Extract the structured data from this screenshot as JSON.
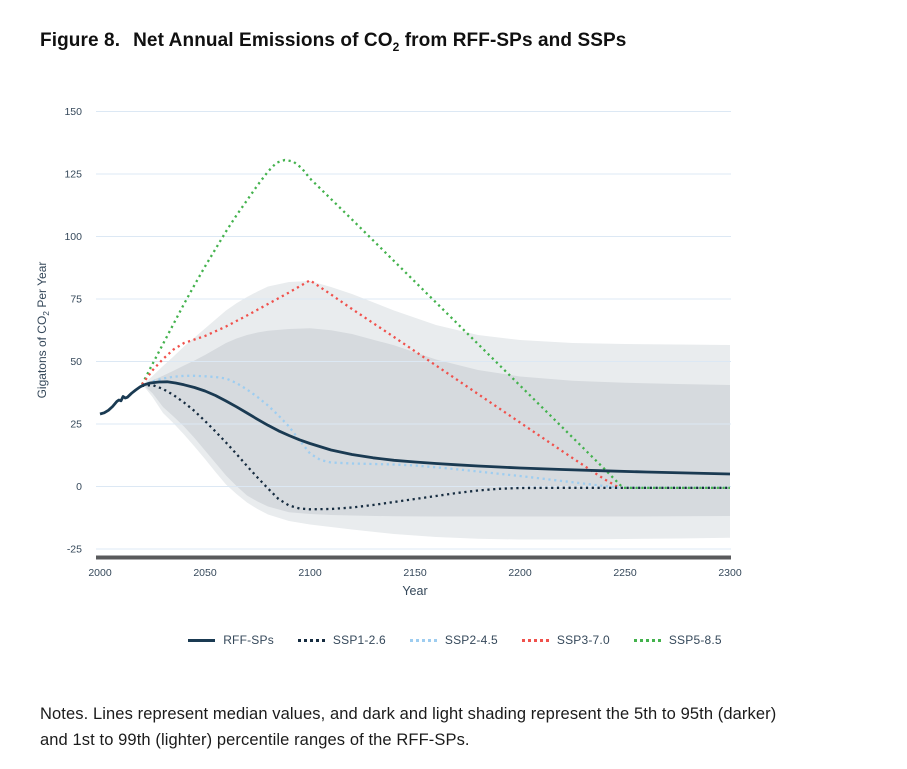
{
  "page": {
    "title_prefix": "Figure 8.",
    "title": {
      "pre": "Net Annual Emissions of CO",
      "sub": "2",
      "post": " from RFF-SPs and SSPs"
    },
    "notes": "Notes. Lines represent median values, and dark and light shading represent the 5th to 95th (darker) and 1st to 99th (lighter) percentile ranges of the RFF-SPs."
  },
  "legend": {
    "items": [
      {
        "label": "RFF-SPs",
        "style": "solid",
        "color": "#1a3a52"
      },
      {
        "label": "SSP1-2.6",
        "style": "dotted",
        "color": "#162c40"
      },
      {
        "label": "SSP2-4.5",
        "style": "dotted",
        "color": "#9ecdf0"
      },
      {
        "label": "SSP3-7.0",
        "style": "dotted",
        "color": "#f0514c"
      },
      {
        "label": "SSP5-8.5",
        "style": "dotted",
        "color": "#43b24d"
      }
    ]
  },
  "chart_data": {
    "type": "line",
    "title": "Figure 8. Net Annual Emissions of CO2 from RFF-SPs and SSPs",
    "xlabel": "Year",
    "ylabel": "Gigatons of CO2 Per Year",
    "ylabel_parts": {
      "pre": "Gigatons of CO",
      "sub": "2",
      "post": "  Per Year"
    },
    "xlim": [
      2000,
      2300
    ],
    "ylim": [
      -25,
      150
    ],
    "x_ticks": [
      2000,
      2050,
      2100,
      2150,
      2200,
      2250,
      2300
    ],
    "y_ticks": [
      -25,
      0,
      25,
      50,
      75,
      100,
      125,
      150
    ],
    "grid": "horizontal",
    "legend_position": "bottom",
    "colors": {
      "grid": "#dce8f4",
      "axis_line": "#595a5c",
      "tick_text": "#35485a",
      "band_dark": "#d6dade",
      "band_light": "#e9ecee"
    },
    "series": [
      {
        "name": "RFF-SPs",
        "style": "solid",
        "color": "#1a3a52",
        "width": 2.8,
        "points": [
          [
            2000,
            29
          ],
          [
            2002,
            29.5
          ],
          [
            2004,
            30.5
          ],
          [
            2006,
            32
          ],
          [
            2008,
            34
          ],
          [
            2009,
            34.6
          ],
          [
            2010,
            34.3
          ],
          [
            2011,
            36
          ],
          [
            2012,
            35.4
          ],
          [
            2013,
            35.7
          ],
          [
            2015,
            37.3
          ],
          [
            2017,
            38.6
          ],
          [
            2019,
            39.8
          ],
          [
            2021,
            40.7
          ],
          [
            2024,
            41.4
          ],
          [
            2028,
            41.8
          ],
          [
            2032,
            41.9
          ],
          [
            2036,
            41.4
          ],
          [
            2040,
            40.7
          ],
          [
            2045,
            39.6
          ],
          [
            2050,
            38.2
          ],
          [
            2055,
            36.4
          ],
          [
            2060,
            34.2
          ],
          [
            2065,
            31.9
          ],
          [
            2070,
            29.4
          ],
          [
            2075,
            26.9
          ],
          [
            2080,
            24.5
          ],
          [
            2085,
            22.3
          ],
          [
            2090,
            20.4
          ],
          [
            2095,
            18.7
          ],
          [
            2100,
            17.2
          ],
          [
            2110,
            14.6
          ],
          [
            2120,
            12.8
          ],
          [
            2130,
            11.5
          ],
          [
            2140,
            10.5
          ],
          [
            2150,
            9.8
          ],
          [
            2160,
            9.2
          ],
          [
            2170,
            8.7
          ],
          [
            2180,
            8.2
          ],
          [
            2190,
            7.8
          ],
          [
            2200,
            7.4
          ],
          [
            2220,
            6.8
          ],
          [
            2240,
            6.3
          ],
          [
            2260,
            5.8
          ],
          [
            2280,
            5.4
          ],
          [
            2300,
            5
          ]
        ]
      },
      {
        "name": "SSP1-2.6",
        "style": "dotted",
        "color": "#162c40",
        "width": 2.3,
        "points": [
          [
            2020,
            40.2
          ],
          [
            2025,
            40.6
          ],
          [
            2030,
            39
          ],
          [
            2035,
            36.6
          ],
          [
            2040,
            33.6
          ],
          [
            2045,
            30.2
          ],
          [
            2050,
            26.2
          ],
          [
            2055,
            22
          ],
          [
            2060,
            17.6
          ],
          [
            2065,
            13
          ],
          [
            2070,
            8.2
          ],
          [
            2075,
            3.6
          ],
          [
            2080,
            -0.8
          ],
          [
            2085,
            -5
          ],
          [
            2090,
            -7.6
          ],
          [
            2095,
            -8.8
          ],
          [
            2100,
            -9.1
          ],
          [
            2110,
            -9
          ],
          [
            2120,
            -8.4
          ],
          [
            2130,
            -7.4
          ],
          [
            2140,
            -6.2
          ],
          [
            2150,
            -5
          ],
          [
            2160,
            -3.8
          ],
          [
            2170,
            -2.6
          ],
          [
            2180,
            -1.6
          ],
          [
            2190,
            -0.9
          ],
          [
            2200,
            -0.6
          ],
          [
            2220,
            -0.5
          ],
          [
            2260,
            -0.5
          ],
          [
            2300,
            -0.5
          ]
        ]
      },
      {
        "name": "SSP2-4.5",
        "style": "dotted",
        "color": "#9ecdf0",
        "width": 2.3,
        "points": [
          [
            2020,
            40.5
          ],
          [
            2025,
            42
          ],
          [
            2030,
            43.2
          ],
          [
            2035,
            43.9
          ],
          [
            2040,
            44.3
          ],
          [
            2045,
            44.3
          ],
          [
            2050,
            44.1
          ],
          [
            2055,
            43.8
          ],
          [
            2060,
            43.2
          ],
          [
            2065,
            41.4
          ],
          [
            2070,
            38.8
          ],
          [
            2075,
            35.8
          ],
          [
            2080,
            32.4
          ],
          [
            2085,
            28.4
          ],
          [
            2090,
            24
          ],
          [
            2095,
            18.5
          ],
          [
            2100,
            13.2
          ],
          [
            2105,
            10.6
          ],
          [
            2110,
            9.6
          ],
          [
            2120,
            9.2
          ],
          [
            2130,
            9
          ],
          [
            2140,
            8.8
          ],
          [
            2150,
            8.4
          ],
          [
            2160,
            7.7
          ],
          [
            2170,
            6.9
          ],
          [
            2180,
            6
          ],
          [
            2190,
            5.1
          ],
          [
            2200,
            4.2
          ],
          [
            2210,
            3.2
          ],
          [
            2220,
            2.2
          ],
          [
            2230,
            1.2
          ],
          [
            2240,
            0.2
          ],
          [
            2247,
            -0.4
          ]
        ]
      },
      {
        "name": "SSP3-7.0",
        "style": "dotted",
        "color": "#f0514c",
        "width": 2.3,
        "points": [
          [
            2020,
            40.8
          ],
          [
            2025,
            46.5
          ],
          [
            2030,
            51
          ],
          [
            2035,
            54.8
          ],
          [
            2040,
            57.4
          ],
          [
            2045,
            58.8
          ],
          [
            2050,
            60.2
          ],
          [
            2060,
            64
          ],
          [
            2070,
            68.4
          ],
          [
            2080,
            73
          ],
          [
            2090,
            77.6
          ],
          [
            2100,
            82.5
          ],
          [
            2110,
            76.8
          ],
          [
            2120,
            71
          ],
          [
            2140,
            59.8
          ],
          [
            2160,
            48.4
          ],
          [
            2180,
            37
          ],
          [
            2200,
            25.6
          ],
          [
            2220,
            14.2
          ],
          [
            2240,
            3
          ],
          [
            2247,
            -0.4
          ]
        ]
      },
      {
        "name": "SSP5-8.5",
        "style": "dotted",
        "color": "#43b24d",
        "width": 2.3,
        "points": [
          [
            2020,
            40.8
          ],
          [
            2025,
            49
          ],
          [
            2030,
            57
          ],
          [
            2035,
            65
          ],
          [
            2040,
            73
          ],
          [
            2045,
            80.6
          ],
          [
            2050,
            88
          ],
          [
            2055,
            95
          ],
          [
            2060,
            102
          ],
          [
            2065,
            108.5
          ],
          [
            2070,
            114.5
          ],
          [
            2075,
            120.5
          ],
          [
            2080,
            126
          ],
          [
            2084,
            129.5
          ],
          [
            2088,
            130.6
          ],
          [
            2092,
            130
          ],
          [
            2096,
            127.4
          ],
          [
            2100,
            123.2
          ],
          [
            2120,
            106.8
          ],
          [
            2140,
            90.2
          ],
          [
            2160,
            73.6
          ],
          [
            2180,
            57
          ],
          [
            2200,
            40.4
          ],
          [
            2220,
            23.8
          ],
          [
            2240,
            7.2
          ],
          [
            2249,
            -0.5
          ],
          [
            2300,
            -0.5
          ]
        ]
      }
    ],
    "bands": [
      {
        "name": "RFF-SPs 5th to 95th percentile",
        "color": "#d6dade",
        "years": [
          2021,
          2025,
          2030,
          2035,
          2040,
          2045,
          2050,
          2055,
          2060,
          2065,
          2070,
          2075,
          2080,
          2090,
          2100,
          2110,
          2120,
          2140,
          2160,
          2180,
          2200,
          2225,
          2250,
          2275,
          2300
        ],
        "upper": [
          41,
          42.5,
          44.3,
          46.3,
          48.4,
          50.4,
          52.6,
          55,
          57.4,
          59.2,
          60.6,
          61.6,
          62.3,
          63,
          63.3,
          62.5,
          61,
          56.5,
          50.8,
          46.6,
          44,
          42.3,
          41.5,
          41,
          40.6
        ],
        "lower": [
          40.4,
          37.3,
          31.8,
          28,
          24,
          19.4,
          14.4,
          9.4,
          4.4,
          0.2,
          -3.6,
          -6,
          -8,
          -10.3,
          -11,
          -11.4,
          -11.6,
          -11.9,
          -12,
          -12,
          -12,
          -12,
          -12,
          -11.9,
          -11.8
        ]
      },
      {
        "name": "RFF-SPs 1st to 99th percentile",
        "color": "#e9ecee",
        "years": [
          2021,
          2025,
          2030,
          2035,
          2040,
          2045,
          2050,
          2055,
          2060,
          2065,
          2070,
          2075,
          2080,
          2090,
          2100,
          2110,
          2120,
          2140,
          2160,
          2180,
          2200,
          2225,
          2250,
          2275,
          2300
        ],
        "upper": [
          41.2,
          44.2,
          48.2,
          52,
          56,
          59.6,
          63.2,
          66.8,
          70.4,
          73.3,
          75.8,
          78,
          80,
          81.8,
          82.2,
          79.8,
          77,
          70.4,
          64.6,
          60.6,
          58.6,
          57.4,
          57,
          56.8,
          56.6
        ],
        "lower": [
          40,
          35.8,
          29.4,
          25.3,
          20.8,
          16,
          11,
          5.8,
          0.8,
          -3,
          -6.4,
          -9,
          -11.2,
          -13.8,
          -15.2,
          -16.2,
          -17.2,
          -19,
          -20.2,
          -20.9,
          -21.2,
          -21.2,
          -21,
          -20.8,
          -20.5
        ]
      }
    ]
  }
}
